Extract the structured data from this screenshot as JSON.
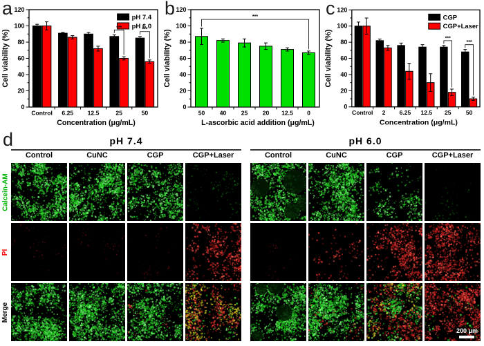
{
  "panels": {
    "a": {
      "letter": "a"
    },
    "b": {
      "letter": "b"
    },
    "c": {
      "letter": "c"
    },
    "d": {
      "letter": "d",
      "groups": [
        {
          "title": "pH 7.4",
          "columns": [
            "Control",
            "CuNC",
            "CGP",
            "CGP+Laser"
          ]
        },
        {
          "title": "pH 6.0",
          "columns": [
            "Control",
            "CuNC",
            "CGP",
            "CGP+Laser"
          ]
        }
      ],
      "row_labels": [
        {
          "label": "Calcein-AM",
          "color": "#00b400"
        },
        {
          "label": "PI",
          "color": "#ff0000"
        },
        {
          "label": "Merge",
          "color": "#000000"
        }
      ],
      "scale_bar_label": "200 μm",
      "cells": [
        [
          {
            "g": 0.85
          },
          {
            "g": 0.9
          },
          {
            "g": 0.72
          },
          {
            "g": 0.1,
            "dim": true
          },
          {
            "g": 0.8,
            "holes": true
          },
          {
            "g": 0.85
          },
          {
            "g": 0.3
          },
          {
            "g": 0.04,
            "dim": true
          }
        ],
        [
          {
            "r": 0.025,
            "dim": true
          },
          {
            "r": 0.015,
            "dim": true
          },
          {
            "r": 0.02,
            "dim": true
          },
          {
            "r": 0.5,
            "bias": "right"
          },
          {
            "r": 0.008,
            "dim": true
          },
          {
            "r": 0.12
          },
          {
            "r": 0.55
          },
          {
            "r": 0.68
          }
        ],
        [
          {
            "g": 0.85
          },
          {
            "g": 0.88
          },
          {
            "g": 0.72,
            "r": 0.02
          },
          {
            "g": 0.12,
            "r": 0.4,
            "y": 0.28,
            "ybias": "left"
          },
          {
            "g": 0.8,
            "holes": true
          },
          {
            "g": 0.8,
            "r": 0.06
          },
          {
            "g": 0.45,
            "r": 0.45,
            "y": 0.1
          },
          {
            "g": 0.05,
            "r": 0.72
          }
        ]
      ]
    }
  },
  "chart_data": [
    {
      "type": "bar",
      "panel": "a",
      "categories": [
        "Control",
        "6.25",
        "12.5",
        "25",
        "50"
      ],
      "series": [
        {
          "name": "pH 7.4",
          "color": "#000000",
          "values": [
            100,
            91,
            90,
            87,
            85
          ],
          "errors": [
            2,
            1,
            2,
            2,
            2
          ]
        },
        {
          "name": "pH 6.0",
          "color": "#ff0000",
          "values": [
            100,
            86,
            72,
            60,
            56
          ],
          "errors": [
            5,
            2,
            3,
            2,
            2
          ]
        }
      ],
      "ylabel": "Cell viability (%)",
      "xlabel": "Concentration (μg/mL)",
      "ylim": [
        0,
        120
      ],
      "ytick_step": 20,
      "grid": false,
      "legend": true,
      "legend_position": "top-right",
      "significance": [
        {
          "type": "pair",
          "category": 3,
          "label": "***"
        },
        {
          "type": "pair",
          "category": 4,
          "label": "***"
        }
      ]
    },
    {
      "type": "bar",
      "panel": "b",
      "categories": [
        "50",
        "40",
        "25",
        "20",
        "12.5",
        "0"
      ],
      "series": [
        {
          "name": "",
          "color": "#00e000",
          "values": [
            87,
            82,
            79,
            75,
            71,
            67
          ],
          "errors": [
            10,
            2,
            5,
            4,
            2,
            2
          ]
        }
      ],
      "ylabel": "Cell viability (%)",
      "xlabel": "L-ascorbic acid addition (μg/mL)",
      "ylim": [
        0,
        120
      ],
      "ytick_step": 20,
      "grid": false,
      "legend": false,
      "significance": [
        {
          "type": "span",
          "from": 0,
          "to": 5,
          "height": 108,
          "label": "***"
        }
      ]
    },
    {
      "type": "bar",
      "panel": "c",
      "categories": [
        "Control",
        "2",
        "6.25",
        "12.5",
        "25",
        "50"
      ],
      "series": [
        {
          "name": "CGP",
          "color": "#000000",
          "values": [
            100,
            82,
            76,
            74,
            74,
            68
          ],
          "errors": [
            5,
            2,
            3,
            3,
            2,
            3
          ]
        },
        {
          "name": "CGP+Laser",
          "color": "#ff0000",
          "values": [
            100,
            73,
            44,
            30,
            18,
            10
          ],
          "errors": [
            10,
            3,
            10,
            11,
            4,
            2
          ]
        }
      ],
      "ylabel": "Cell viability (%)",
      "xlabel": "Concentration (μg/mL)",
      "ylim": [
        0,
        120
      ],
      "ytick_step": 20,
      "grid": false,
      "legend": true,
      "legend_position": "top-right",
      "significance": [
        {
          "type": "pair",
          "category": 4,
          "label": "***"
        },
        {
          "type": "pair",
          "category": 5,
          "label": "***"
        }
      ]
    }
  ]
}
